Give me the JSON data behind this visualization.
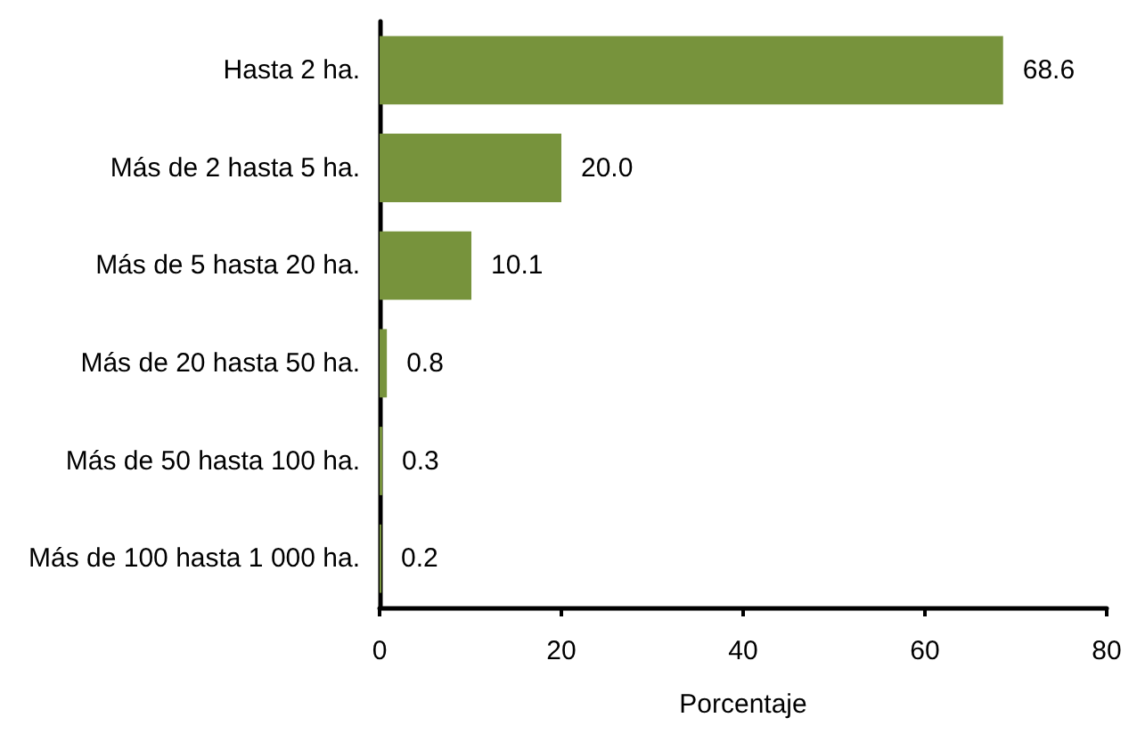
{
  "chart_data": {
    "type": "bar",
    "orientation": "horizontal",
    "xlabel": "Porcentaje",
    "categories": [
      "Hasta 2 ha.",
      "Más de 2 hasta 5 ha.",
      "Más de 5 hasta 20 ha.",
      "Más de 20 hasta 50 ha.",
      "Más de 50 hasta 100 ha.",
      "Más de 100 hasta 1 000 ha."
    ],
    "values": [
      68.6,
      20.0,
      10.1,
      0.8,
      0.3,
      0.2
    ],
    "value_labels": [
      "68.6",
      "20.0",
      "10.1",
      "0.8",
      "0.3",
      "0.2"
    ],
    "color": "#77933c",
    "xlim": [
      0,
      80
    ],
    "xticks": [
      0,
      20,
      40,
      60,
      80
    ],
    "grid": false
  }
}
